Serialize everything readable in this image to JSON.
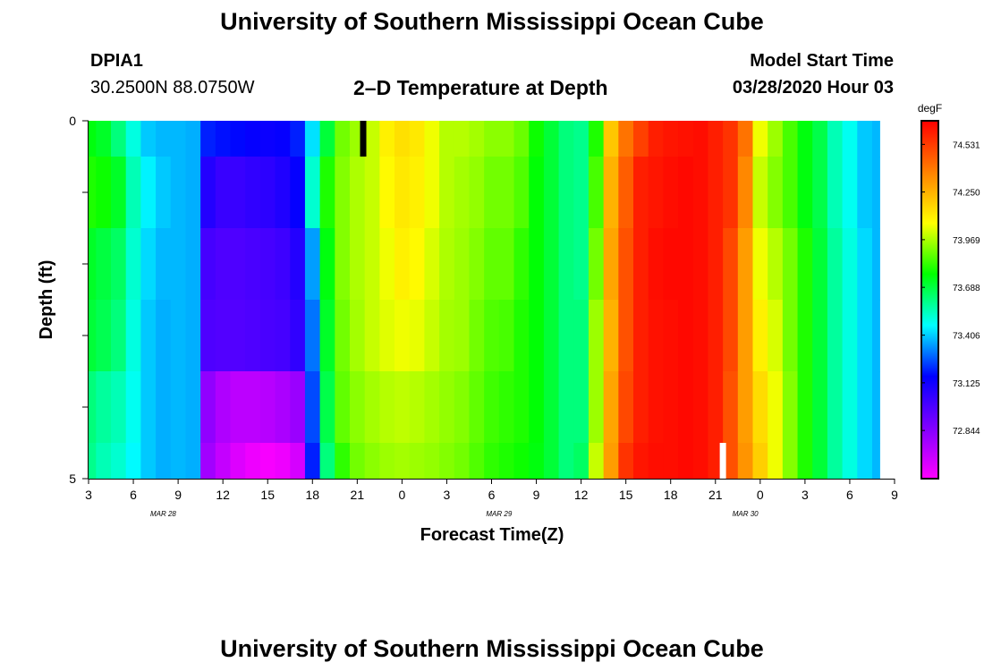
{
  "header": {
    "title": "University of Southern Mississippi Ocean Cube",
    "station_id": "DPIA1",
    "station_coords": "30.2500N 88.0750W",
    "chart_subtitle": "2–D Temperature at Depth",
    "model_label": "Model Start Time",
    "model_time": "03/28/2020 Hour 03"
  },
  "footer": {
    "title": "University of Southern Mississippi Ocean Cube"
  },
  "chart_data": {
    "type": "heatmap",
    "title": "2–D Temperature at Depth",
    "xlabel": "Forecast Time(Z)",
    "ylabel": "Depth (ft)",
    "ylim": [
      0,
      5
    ],
    "y_tick_labels": [
      "0",
      "5"
    ],
    "x_tick_labels": [
      "3",
      "6",
      "9",
      "12",
      "15",
      "18",
      "21",
      "0",
      "3",
      "6",
      "9",
      "12",
      "15",
      "18",
      "21",
      "0",
      "3",
      "6",
      "9"
    ],
    "date_labels": [
      {
        "text": "MAR 28",
        "hour_index": 5
      },
      {
        "text": "MAR 29",
        "hour_index": 27.5
      },
      {
        "text": "MAR 30",
        "hour_index": 44
      }
    ],
    "colorbar": {
      "units": "degF",
      "vmin": 72.56,
      "vmax": 74.67,
      "ticks": [
        "74.531",
        "74.250",
        "73.969",
        "73.688",
        "73.406",
        "73.125",
        "72.844"
      ],
      "colors": [
        "#ff00ff",
        "#8000ff",
        "#0000ff",
        "#00ffff",
        "#00ff00",
        "#ffff00",
        "#ff8000",
        "#ff0000"
      ]
    },
    "x_hours_start": 3,
    "x_hours_end": 57,
    "column_hours": [
      3,
      4,
      5,
      6,
      7,
      8,
      9,
      10,
      11,
      12,
      13,
      14,
      15,
      16,
      17,
      18,
      19,
      20,
      21,
      22,
      23,
      24,
      25,
      26,
      27,
      28,
      29,
      30,
      31,
      32,
      33,
      34,
      35,
      36,
      37,
      38,
      39,
      40,
      41,
      42,
      43,
      44,
      45,
      46,
      47,
      48,
      49,
      50,
      51,
      52,
      53,
      54,
      55,
      56
    ],
    "depth_rows_ft": [
      0,
      1,
      2,
      3,
      4,
      5
    ],
    "values": [
      [
        73.75,
        73.72,
        73.62,
        73.5,
        73.4,
        73.38,
        73.38,
        73.37,
        73.2,
        73.18,
        73.17,
        73.15,
        73.14,
        73.15,
        73.2,
        73.43,
        73.7,
        73.9,
        73.95,
        74.0,
        74.1,
        74.14,
        74.12,
        74.05,
        73.98,
        73.98,
        73.96,
        73.93,
        73.93,
        73.89,
        73.78,
        73.7,
        73.62,
        73.6,
        73.8,
        74.2,
        74.4,
        74.52,
        74.6,
        74.62,
        74.63,
        74.64,
        74.6,
        74.55,
        74.4,
        74.05,
        73.95,
        73.85,
        73.75,
        73.68,
        73.55,
        73.48,
        73.4,
        73.38
      ],
      [
        73.8,
        73.78,
        73.72,
        73.55,
        73.45,
        73.4,
        73.38,
        73.37,
        73.08,
        73.03,
        73.03,
        73.05,
        73.06,
        73.09,
        73.15,
        73.52,
        73.8,
        73.92,
        73.97,
        74.0,
        74.08,
        74.12,
        74.1,
        74.05,
        73.98,
        73.96,
        73.94,
        73.9,
        73.9,
        73.86,
        73.76,
        73.7,
        73.62,
        73.6,
        73.85,
        74.25,
        74.45,
        74.6,
        74.62,
        74.64,
        74.65,
        74.64,
        74.6,
        74.55,
        74.35,
        74.0,
        73.92,
        73.85,
        73.75,
        73.68,
        73.55,
        73.48,
        73.4,
        73.38
      ],
      [
        73.72,
        73.69,
        73.65,
        73.52,
        73.42,
        73.38,
        73.38,
        73.37,
        73.0,
        72.98,
        72.98,
        72.99,
        73.0,
        73.02,
        73.08,
        73.35,
        73.75,
        73.92,
        73.97,
        74.0,
        74.05,
        74.1,
        74.08,
        74.02,
        73.97,
        73.95,
        73.92,
        73.88,
        73.88,
        73.82,
        73.76,
        73.7,
        73.62,
        73.6,
        73.9,
        74.28,
        74.48,
        74.6,
        74.64,
        74.65,
        74.65,
        74.64,
        74.6,
        74.5,
        74.3,
        74.05,
        73.98,
        73.9,
        73.8,
        73.7,
        73.58,
        73.5,
        73.42,
        73.38
      ],
      [
        73.7,
        73.67,
        73.62,
        73.5,
        73.4,
        73.37,
        73.38,
        73.37,
        72.98,
        72.97,
        72.97,
        72.98,
        72.99,
        73.0,
        73.05,
        73.3,
        73.72,
        73.9,
        73.96,
        74.0,
        74.03,
        74.05,
        74.04,
        74.0,
        73.96,
        73.95,
        73.9,
        73.86,
        73.85,
        73.8,
        73.76,
        73.7,
        73.62,
        73.62,
        73.95,
        74.25,
        74.48,
        74.6,
        74.63,
        74.64,
        74.65,
        74.64,
        74.6,
        74.5,
        74.3,
        74.1,
        74.02,
        73.9,
        73.8,
        73.7,
        73.58,
        73.5,
        73.42,
        73.38
      ],
      [
        73.62,
        73.58,
        73.55,
        73.48,
        73.4,
        73.37,
        73.38,
        73.37,
        72.82,
        72.75,
        72.72,
        72.72,
        72.73,
        72.76,
        72.8,
        73.25,
        73.68,
        73.88,
        73.93,
        73.96,
        73.98,
        73.99,
        73.98,
        73.96,
        73.94,
        73.92,
        73.88,
        73.84,
        73.82,
        73.8,
        73.76,
        73.7,
        73.62,
        73.62,
        73.95,
        74.28,
        74.5,
        74.6,
        74.63,
        74.64,
        74.65,
        74.64,
        74.6,
        74.48,
        74.3,
        74.15,
        74.05,
        73.92,
        73.8,
        73.7,
        73.58,
        73.5,
        73.42,
        73.38
      ],
      [
        73.6,
        73.55,
        73.52,
        73.46,
        73.4,
        73.37,
        73.38,
        73.37,
        72.78,
        72.7,
        72.64,
        72.6,
        72.58,
        72.6,
        72.66,
        73.2,
        73.62,
        73.82,
        73.9,
        73.93,
        73.95,
        73.96,
        73.95,
        73.94,
        73.92,
        73.9,
        73.86,
        73.82,
        73.8,
        73.78,
        73.75,
        73.7,
        73.62,
        73.65,
        74.0,
        74.3,
        74.55,
        74.62,
        74.64,
        74.64,
        74.65,
        74.64,
        74.6,
        74.48,
        74.32,
        74.18,
        74.05,
        73.92,
        73.8,
        73.7,
        73.58,
        73.5,
        73.42,
        73.38
      ]
    ],
    "markers": [
      {
        "hour": 21.4,
        "depth_from": 0,
        "depth_to": 0.5,
        "color": "#000000"
      },
      {
        "hour": 45.5,
        "depth_from": 4.5,
        "depth_to": 5,
        "color": "#ffffff"
      }
    ]
  }
}
